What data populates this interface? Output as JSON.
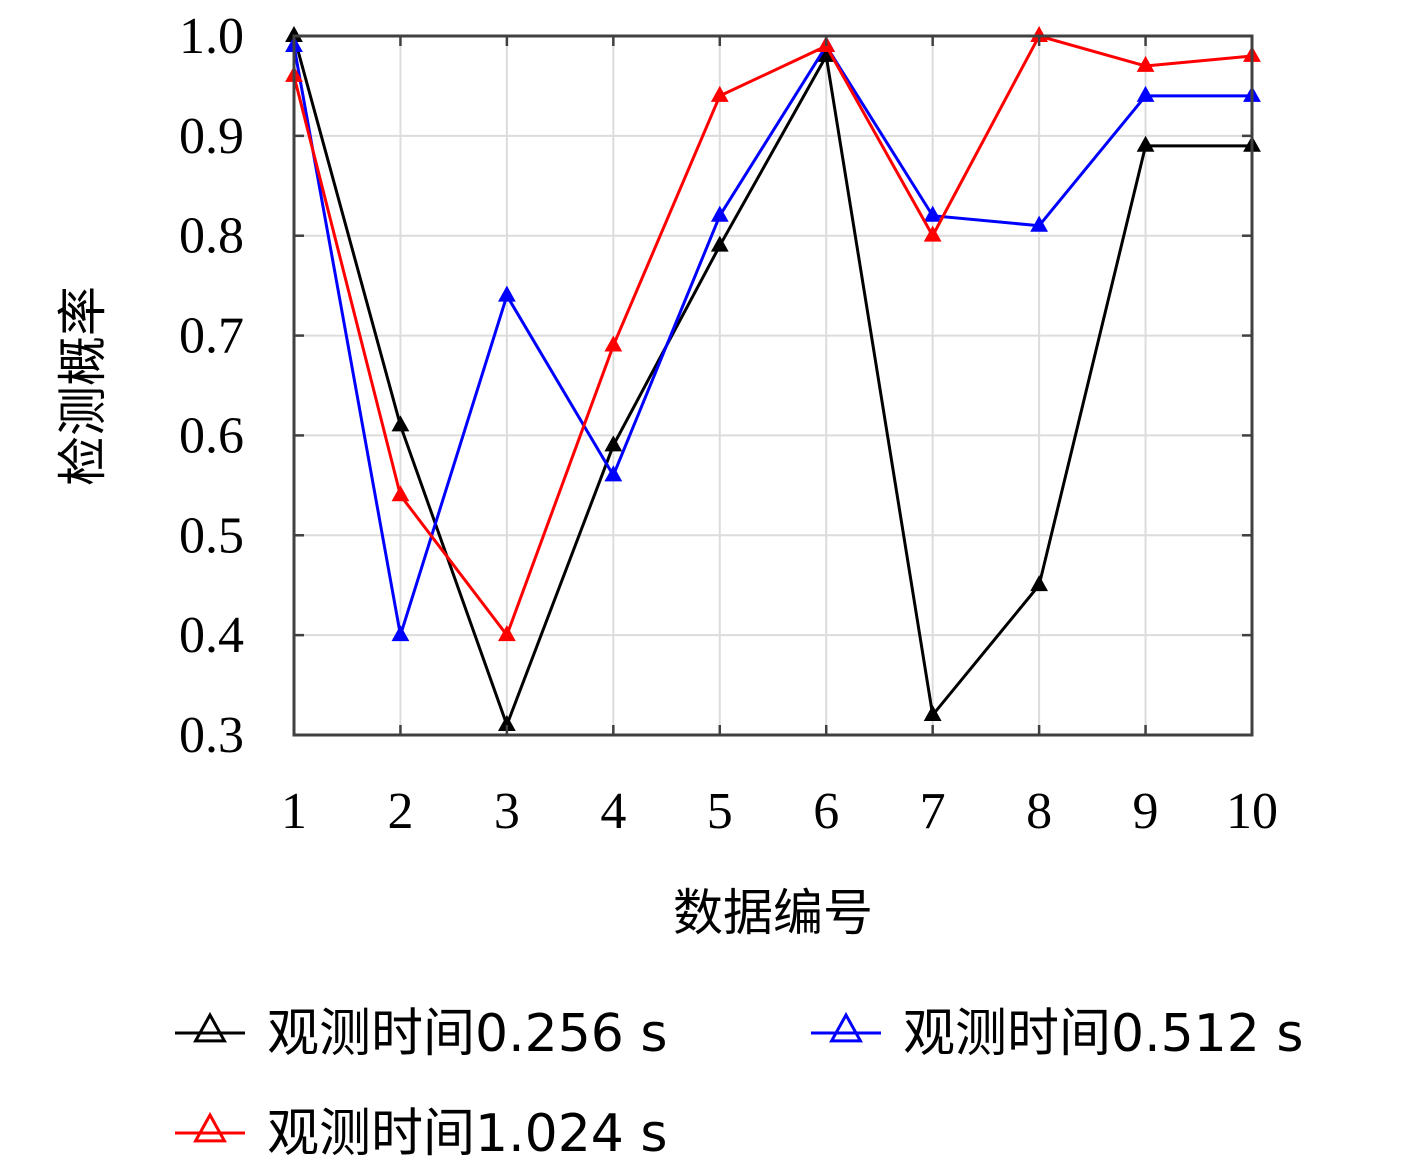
{
  "chart_data": {
    "type": "line",
    "xlabel": "数据编号",
    "ylabel": "检测概率",
    "x": [
      1,
      2,
      3,
      4,
      5,
      6,
      7,
      8,
      9,
      10
    ],
    "xticks": [
      "1",
      "2",
      "3",
      "4",
      "5",
      "6",
      "7",
      "8",
      "9",
      "10"
    ],
    "yticks": [
      "0.3",
      "0.4",
      "0.5",
      "0.6",
      "0.7",
      "0.8",
      "0.9",
      "1.0"
    ],
    "xlim": [
      1,
      10
    ],
    "ylim": [
      0.3,
      1.0
    ],
    "grid": true,
    "marker": "triangle",
    "legend_position": "bottom",
    "series": [
      {
        "name": "观测时间0.256 s",
        "color": "#000000",
        "values": [
          1.0,
          0.61,
          0.31,
          0.59,
          0.79,
          0.98,
          0.32,
          0.45,
          0.89,
          0.89
        ]
      },
      {
        "name": "观测时间0.512 s",
        "color": "#0000ff",
        "values": [
          0.99,
          0.4,
          0.74,
          0.56,
          0.82,
          0.99,
          0.82,
          0.81,
          0.94,
          0.94
        ]
      },
      {
        "name": "观测时间1.024 s",
        "color": "#ff0000",
        "values": [
          0.96,
          0.54,
          0.4,
          0.69,
          0.94,
          0.99,
          0.8,
          1.0,
          0.97,
          0.98
        ]
      }
    ]
  }
}
